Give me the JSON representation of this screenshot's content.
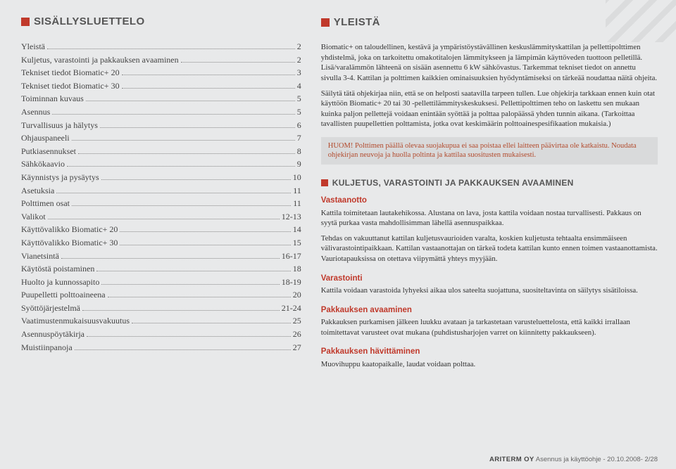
{
  "colors": {
    "accent": "#c0392b",
    "background": "#e8e9ea",
    "callout_bg": "#d9dadb",
    "callout_text": "#b24a2c",
    "text": "#333333",
    "muted": "#666666"
  },
  "left": {
    "title": "SISÄLLYSLUETTELO",
    "toc": [
      {
        "label": "Yleistä",
        "page": "2"
      },
      {
        "label": "Kuljetus, varastointi ja pakkauksen avaaminen",
        "page": "2"
      },
      {
        "label": "Tekniset tiedot Biomatic+ 20",
        "page": "3"
      },
      {
        "label": "Tekniset tiedot Biomatic+ 30",
        "page": "4"
      },
      {
        "label": "Toiminnan kuvaus",
        "page": "5"
      },
      {
        "label": "Asennus",
        "page": "5"
      },
      {
        "label": "Turvallisuus ja hälytys",
        "page": "6"
      },
      {
        "label": "Ohjauspaneeli",
        "page": "7"
      },
      {
        "label": "Putkiasennukset",
        "page": "8"
      },
      {
        "label": "Sähkökaavio",
        "page": "9"
      },
      {
        "label": "Käynnistys ja pysäytys",
        "page": "10"
      },
      {
        "label": "Asetuksia",
        "page": "11"
      },
      {
        "label": "Polttimen osat",
        "page": "11"
      },
      {
        "label": "Valikot",
        "page": "12-13"
      },
      {
        "label": "Käyttövalikko Biomatic+ 20",
        "page": "14"
      },
      {
        "label": "Käyttövalikko Biomatic+ 30",
        "page": "15"
      },
      {
        "label": "Vianetsintä",
        "page": "16-17"
      },
      {
        "label": "Käytöstä poistaminen",
        "page": "18"
      },
      {
        "label": "Huolto ja kunnossapito",
        "page": "18-19"
      },
      {
        "label": "Puupelletti polttoaineena",
        "page": "20"
      },
      {
        "label": "Syöttöjärjestelmä",
        "page": "21-24"
      },
      {
        "label": "Vaatimustenmukaisuusvakuutus",
        "page": "25"
      },
      {
        "label": "Asennuspöytäkirja",
        "page": "26"
      },
      {
        "label": "Muistiinpanoja",
        "page": "27"
      }
    ]
  },
  "right": {
    "title": "YLEISTÄ",
    "p1": "Biomatic+ on taloudellinen, kestävä ja ympäristöystävällinen keskuslämmityskattilan ja pellettipolttimen yhdistelmä, joka on tarkoitettu omakotitalojen lämmitykseen ja lämpimän käyttöveden tuottoon pelletillä. Lisä/varalämmön lähteenä on sisään asennettu 6 kW sähkövastus. Tarkemmat tekniset tiedot on annettu sivulla 3-4. Kattilan ja polttimen kaikkien ominaisuuksien hyödyntämiseksi on tärkeää noudattaa näitä ohjeita.",
    "p2": "Säilytä tätä ohjekirjaa niin, että se on helposti saatavilla tarpeen tullen. Lue ohjekirja tarkkaan ennen kuin otat käyttöön Biomatic+ 20 tai 30 -pellettilämmityskeskuksesi. Pellettipolttimen teho on laskettu sen mukaan kuinka paljon pellettejä voidaan enintään syöttää ja polttaa palopäässä yhden tunnin aikana. (Tarkoittaa tavallisten puupellettien polttamista, jotka ovat keskimäärin polttoainespesifikaation mukaisia.)",
    "callout": "HUOM! Polttimen päällä olevaa suojakupua ei saa poistaa ellei laitteen päävirtaa ole katkaistu. Noudata ohjekirjan neuvoja ja huolla poltinta ja kattilaa suositusten mukaisesti.",
    "sub_title": "KULJETUS, VARASTOINTI JA PAKKAUKSEN AVAAMINEN",
    "sections": {
      "vastaanotto": {
        "h": "Vastaanotto",
        "p1": "Kattila toimitetaan lautakehikossa. Alustana on lava, josta kattila voidaan nostaa turvallisesti. Pakkaus on syytä purkaa vasta mahdollisimman lähellä asennuspaikkaa.",
        "p2": "Tehdas on vakuuttanut kattilan kuljetusvaurioiden varalta, koskien kuljetusta tehtaalta ensimmäiseen välivarastointipaikkaan. Kattilan vastaanottajan on tärkeä todeta kattilan kunto ennen toimen vastaanottamista. Vauriotapauksissa on otettava viipymättä yhteys myyjään."
      },
      "varastointi": {
        "h": "Varastointi",
        "p": "Kattila voidaan varastoida lyhyeksi aikaa ulos sateelta suojattuna, suositeltavinta on säilytys sisätiloissa."
      },
      "avaaminen": {
        "h": "Pakkauksen avaaminen",
        "p": "Pakkauksen purkamisen jälkeen luukku avataan ja tarkastetaan varusteluettelosta, että kaikki irrallaan toimitettavat varusteet ovat mukana (puhdistusharjojen varret on kiinnitetty pakkaukseen)."
      },
      "havittaminen": {
        "h": "Pakkauksen hävittäminen",
        "p": "Muovihuppu kaatopaikalle, laudat voidaan polttaa."
      }
    }
  },
  "footer": {
    "brand": "ARITERM OY",
    "doc": "Asennus ja käyttöohje - 20.10.2008- 2/28"
  }
}
